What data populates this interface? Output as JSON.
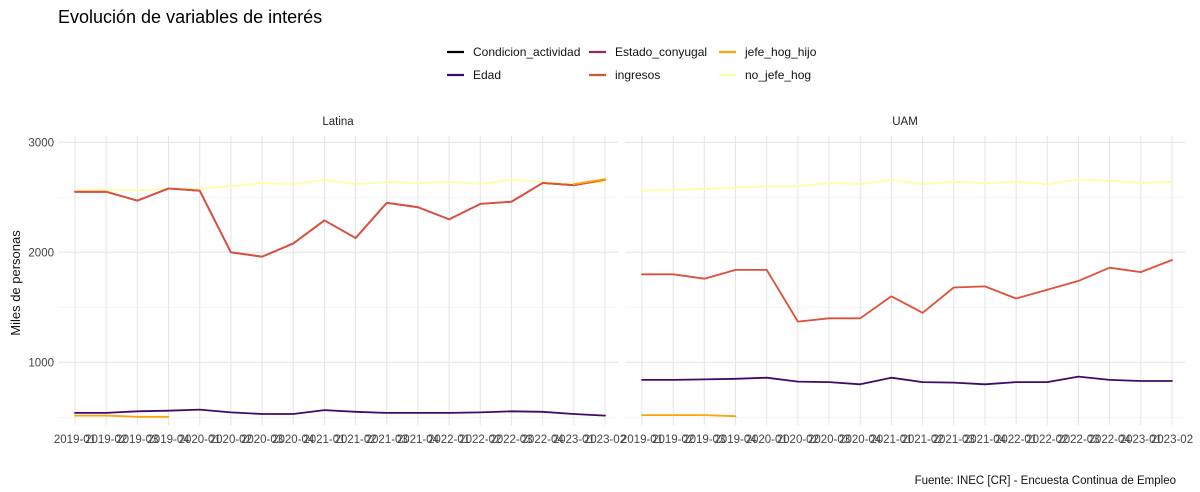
{
  "chart_data": {
    "type": "line",
    "title": "Evolución de variables de interés",
    "ylabel": "Miles de personas",
    "xlabel": "",
    "caption": "Fuente: INEC [CR] - Encuesta Continua de Empleo",
    "ylim": [
      430,
      3130
    ],
    "yticks": [
      1000,
      2000,
      3000
    ],
    "x": [
      "2019-01",
      "2019-02",
      "2019-03",
      "2019-04",
      "2020-01",
      "2020-02",
      "2020-03",
      "2020-04",
      "2021-01",
      "2021-02",
      "2021-03",
      "2021-04",
      "2022-01",
      "2022-02",
      "2022-03",
      "2022-04",
      "2023-01",
      "2023-02"
    ],
    "legend": {
      "position": "top",
      "entries": [
        {
          "name": "Condicion_actividad",
          "color": "#000004"
        },
        {
          "name": "Edad",
          "color": "#420a68"
        },
        {
          "name": "Estado_conyugal",
          "color": "#932667"
        },
        {
          "name": "ingresos",
          "color": "#dd513a"
        },
        {
          "name": "jefe_hog_hijo",
          "color": "#fca50a"
        },
        {
          "name": "no_jefe_hog",
          "color": "#fcffa4"
        }
      ]
    },
    "panels": [
      {
        "name": "Latina",
        "series": [
          {
            "name": "no_jefe_hog",
            "color": "#fcffa4",
            "values": [
              2560,
              2570,
              2565,
              2575,
              2580,
              2600,
              2630,
              2620,
              2660,
              2620,
              2640,
              2630,
              2640,
              2620,
              2660,
              2640,
              2620,
              2640
            ]
          },
          {
            "name": "Estado_conyugal",
            "color": "#932667",
            "values": [
              2550,
              2550,
              2470,
              2580,
              2560,
              2000,
              1960,
              2080,
              2290,
              2130,
              2450,
              2410,
              2300,
              2440,
              2460,
              2630,
              2610,
              2660
            ]
          },
          {
            "name": "ingresos",
            "color": "#dd513a",
            "values": [
              2550,
              2550,
              2470,
              2580,
              2560,
              2000,
              1960,
              2080,
              2290,
              2130,
              2450,
              2410,
              2300,
              2440,
              2460,
              2630,
              2610,
              2660
            ]
          },
          {
            "name": "jefe_hog_hijo",
            "color": "#fca50a",
            "values": [
              515,
              515,
              505,
              505,
              null,
              null,
              null,
              null,
              null,
              null,
              null,
              null,
              null,
              null,
              null,
              null,
              2620,
              2665
            ]
          },
          {
            "name": "Edad",
            "color": "#420a68",
            "values": [
              540,
              540,
              555,
              560,
              570,
              545,
              530,
              530,
              565,
              550,
              540,
              540,
              540,
              545,
              555,
              550,
              530,
              515
            ]
          }
        ]
      },
      {
        "name": "UAM",
        "series": [
          {
            "name": "no_jefe_hog",
            "color": "#fcffa4",
            "values": [
              2560,
              2570,
              2575,
              2590,
              2600,
              2600,
              2630,
              2620,
              2660,
              2620,
              2640,
              2630,
              2640,
              2620,
              2660,
              2650,
              2630,
              2640
            ]
          },
          {
            "name": "ingresos",
            "color": "#dd513a",
            "values": [
              1800,
              1800,
              1760,
              1840,
              1840,
              1370,
              1400,
              1400,
              1600,
              1450,
              1680,
              1690,
              1580,
              1660,
              1740,
              1860,
              1820,
              1930
            ]
          },
          {
            "name": "jefe_hog_hijo",
            "color": "#fca50a",
            "values": [
              520,
              520,
              520,
              510,
              null,
              null,
              null,
              null,
              null,
              null,
              null,
              null,
              null,
              null,
              null,
              null,
              null,
              null
            ]
          },
          {
            "name": "Edad",
            "color": "#420a68",
            "values": [
              840,
              840,
              845,
              850,
              860,
              825,
              820,
              800,
              860,
              820,
              815,
              800,
              820,
              820,
              870,
              840,
              830,
              830
            ]
          }
        ]
      }
    ],
    "grid": true
  }
}
